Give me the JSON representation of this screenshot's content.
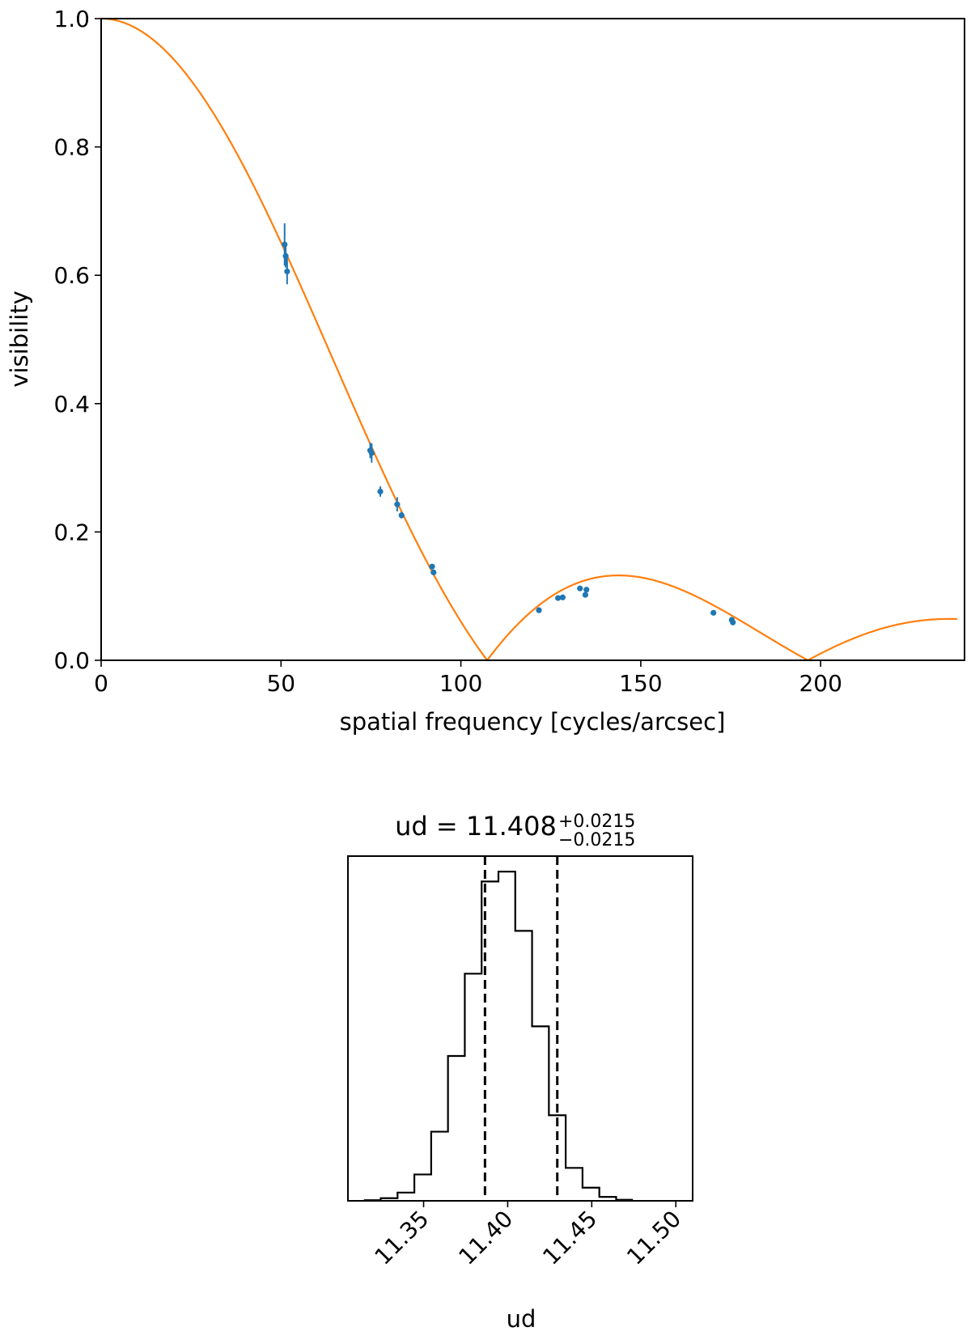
{
  "chart_data": [
    {
      "type": "line",
      "xlabel": "spatial frequency [cycles/arcsec]",
      "ylabel": "visibility",
      "xlim": [
        0,
        240
      ],
      "ylim": [
        0,
        1.0
      ],
      "xticks": [
        0,
        50,
        100,
        150,
        200
      ],
      "xtick_labels": [
        "0",
        "50",
        "100",
        "150",
        "200"
      ],
      "yticks": [
        0.0,
        0.2,
        0.4,
        0.6,
        0.8,
        1.0
      ],
      "ytick_labels": [
        "0.0",
        "0.2",
        "0.4",
        "0.6",
        "0.8",
        "1.0"
      ],
      "grid": false,
      "model_curve": {
        "kind": "uniform-disk visibility |2 J1(x)/x|",
        "first_null_x": 107.3,
        "color": "#ff7f0e"
      },
      "data_points": {
        "color": "#1f77b4",
        "points": [
          {
            "x": 51.0,
            "y": 0.648,
            "yerr": 0.033
          },
          {
            "x": 51.3,
            "y": 0.63,
            "yerr": 0.018
          },
          {
            "x": 51.7,
            "y": 0.606,
            "yerr": 0.02
          },
          {
            "x": 74.8,
            "y": 0.327,
            "yerr": 0.012
          },
          {
            "x": 75.2,
            "y": 0.323,
            "yerr": 0.015
          },
          {
            "x": 77.6,
            "y": 0.263,
            "yerr": 0.008
          },
          {
            "x": 82.3,
            "y": 0.243,
            "yerr": 0.011
          },
          {
            "x": 83.5,
            "y": 0.226,
            "yerr": 0.005
          },
          {
            "x": 92.0,
            "y": 0.146,
            "yerr": 0.004
          },
          {
            "x": 92.4,
            "y": 0.137,
            "yerr": 0.004
          },
          {
            "x": 121.7,
            "y": 0.078,
            "yerr": 0.002
          },
          {
            "x": 127.0,
            "y": 0.097,
            "yerr": 0.002
          },
          {
            "x": 128.3,
            "y": 0.098,
            "yerr": 0.002
          },
          {
            "x": 133.1,
            "y": 0.112,
            "yerr": 0.004
          },
          {
            "x": 134.6,
            "y": 0.102,
            "yerr": 0.004
          },
          {
            "x": 134.9,
            "y": 0.11,
            "yerr": 0.004
          },
          {
            "x": 170.2,
            "y": 0.074,
            "yerr": 0.002
          },
          {
            "x": 175.3,
            "y": 0.063,
            "yerr": 0.002
          },
          {
            "x": 175.6,
            "y": 0.059,
            "yerr": 0.002
          }
        ]
      }
    },
    {
      "type": "histogram",
      "title_main": "ud = 11.408",
      "title_plus": "+0.0215",
      "title_minus": "−0.0215",
      "xlabel": "ud",
      "xlim": [
        11.305,
        11.51
      ],
      "xticks": [
        11.35,
        11.4,
        11.45,
        11.5
      ],
      "xtick_labels": [
        "11.35",
        "11.40",
        "11.45",
        "11.50"
      ],
      "median": 11.408,
      "quantiles": [
        11.3865,
        11.4295
      ],
      "bins": {
        "start": 11.3145,
        "width": 0.01,
        "counts": [
          0.002,
          0.008,
          0.025,
          0.08,
          0.21,
          0.44,
          0.69,
          0.97,
          1.0,
          0.82,
          0.53,
          0.26,
          0.1,
          0.04,
          0.012,
          0.003
        ]
      },
      "line_color": "#000000"
    }
  ]
}
